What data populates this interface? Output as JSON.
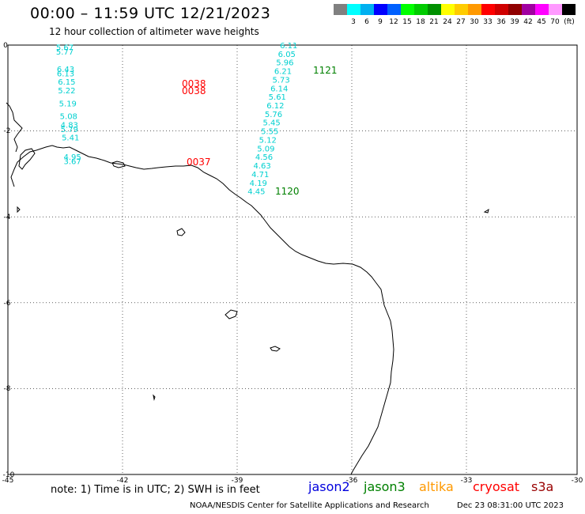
{
  "title": "00:00 – 11:59 UTC 12/21/2023",
  "subtitle": "12 hour collection of altimeter wave heights",
  "legend": {
    "unit": "(ft)",
    "items": [
      {
        "color": "#808080",
        "label": ""
      },
      {
        "color": "#00ffff",
        "label": "3"
      },
      {
        "color": "#00b0f0",
        "label": "6"
      },
      {
        "color": "#0000ff",
        "label": "9"
      },
      {
        "color": "#0060ff",
        "label": "12"
      },
      {
        "color": "#00ff00",
        "label": "15"
      },
      {
        "color": "#00cc00",
        "label": "18"
      },
      {
        "color": "#009000",
        "label": "21"
      },
      {
        "color": "#ffff00",
        "label": "24"
      },
      {
        "color": "#ffcc00",
        "label": "27"
      },
      {
        "color": "#ff9900",
        "label": "30"
      },
      {
        "color": "#ff0000",
        "label": "33"
      },
      {
        "color": "#d00000",
        "label": "36"
      },
      {
        "color": "#900000",
        "label": "39"
      },
      {
        "color": "#a000a0",
        "label": "42"
      },
      {
        "color": "#ff00ff",
        "label": "45"
      },
      {
        "color": "#ff99ff",
        "label": "70"
      },
      {
        "color": "#000000",
        "label": ""
      }
    ]
  },
  "axes": {
    "lon_labels": [
      "-45",
      "-42",
      "-39",
      "-36",
      "-33",
      "-30"
    ],
    "lat_labels": [
      "0",
      "-2",
      "-4",
      "-6",
      "-8",
      "-10"
    ]
  },
  "tracks": [
    {
      "satellite": "cryosat",
      "color": "#00d0d0",
      "time_color": "#ff0000",
      "times": [
        "0038",
        "0038",
        "0037"
      ],
      "points": [
        {
          "lat": -0.05,
          "lon": -43.5,
          "swh": "5.67"
        },
        {
          "lat": -0.15,
          "lon": -43.5,
          "swh": "5.77"
        },
        {
          "lat": -0.55,
          "lon": -43.48,
          "swh": "6.43"
        },
        {
          "lat": -0.65,
          "lon": -43.48,
          "swh": "6.13"
        },
        {
          "lat": -0.85,
          "lon": -43.45,
          "swh": "6.15"
        },
        {
          "lat": -1.05,
          "lon": -43.45,
          "swh": "5.22"
        },
        {
          "lat": -1.35,
          "lon": -43.42,
          "swh": "5.19"
        },
        {
          "lat": -1.65,
          "lon": -43.4,
          "swh": "5.08"
        },
        {
          "lat": -1.85,
          "lon": -43.38,
          "swh": "4.83"
        },
        {
          "lat": -1.95,
          "lon": -43.38,
          "swh": "5.79"
        },
        {
          "lat": -2.15,
          "lon": -43.35,
          "swh": "5.41"
        },
        {
          "lat": -2.6,
          "lon": -43.3,
          "swh": "4.95"
        },
        {
          "lat": -2.7,
          "lon": -43.3,
          "swh": "3.67"
        }
      ]
    },
    {
      "satellite": "jason3",
      "color": "#00d0d0",
      "time_color": "#008000",
      "times": [
        "1121",
        "1120"
      ],
      "points": [
        {
          "lat": 0.0,
          "lon": -37.6,
          "swh": "6.11"
        },
        {
          "lat": -0.2,
          "lon": -37.65,
          "swh": "6.05"
        },
        {
          "lat": -0.4,
          "lon": -37.7,
          "swh": "5.96"
        },
        {
          "lat": -0.6,
          "lon": -37.75,
          "swh": "6.21"
        },
        {
          "lat": -0.8,
          "lon": -37.8,
          "swh": "5.73"
        },
        {
          "lat": -1.0,
          "lon": -37.85,
          "swh": "6.14"
        },
        {
          "lat": -1.2,
          "lon": -37.9,
          "swh": "5.61"
        },
        {
          "lat": -1.4,
          "lon": -37.95,
          "swh": "6.12"
        },
        {
          "lat": -1.6,
          "lon": -38.0,
          "swh": "5.76"
        },
        {
          "lat": -1.8,
          "lon": -38.05,
          "swh": "5.45"
        },
        {
          "lat": -2.0,
          "lon": -38.1,
          "swh": "5.55"
        },
        {
          "lat": -2.2,
          "lon": -38.15,
          "swh": "5.12"
        },
        {
          "lat": -2.4,
          "lon": -38.2,
          "swh": "5.09"
        },
        {
          "lat": -2.6,
          "lon": -38.25,
          "swh": "4.56"
        },
        {
          "lat": -2.8,
          "lon": -38.3,
          "swh": "4.63"
        },
        {
          "lat": -3.0,
          "lon": -38.35,
          "swh": "4.71"
        },
        {
          "lat": -3.2,
          "lon": -38.4,
          "swh": "4.19"
        },
        {
          "lat": -3.4,
          "lon": -38.45,
          "swh": "4.45"
        }
      ]
    }
  ],
  "note": "note:  1) Time is in UTC;  2) SWH is in feet",
  "satellites": [
    {
      "name": "jason2",
      "color": "#0000dd"
    },
    {
      "name": "jason3",
      "color": "#008000"
    },
    {
      "name": "altika",
      "color": "#ff9900"
    },
    {
      "name": "cryosat",
      "color": "#ff0000"
    },
    {
      "name": "s3a",
      "color": "#990000"
    }
  ],
  "credit": "NOAA/NESDIS Center for Satellite Applications and Research",
  "timestamp": "Dec 23 08:31:00 UTC 2023"
}
